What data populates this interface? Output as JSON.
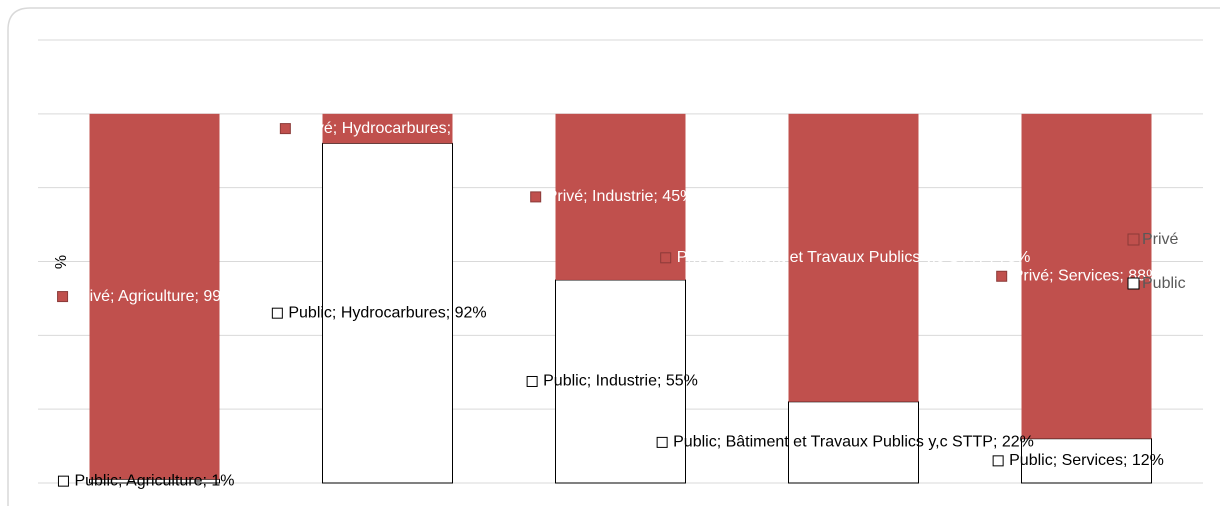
{
  "chart_data": {
    "type": "stacked_bar",
    "y_label": "%",
    "categories": [
      "Agriculture",
      "Hydrocarbures",
      "Industrie",
      "Bâtiment et Travaux Publics y,c STTP",
      "Services"
    ],
    "series": [
      {
        "name": "Public",
        "color": "#ffffff",
        "values": [
          1,
          92,
          55,
          22,
          12
        ],
        "value_labels": [
          "Public; Agriculture; 1%",
          "Public; Hydrocarbures; 92%",
          "Public; Industrie; 55%",
          "Public; Bâtiment et Travaux Publics y,c STTP; 22%",
          "Public; Services; 12%"
        ]
      },
      {
        "name": "Privé",
        "color": "#c0504d",
        "values": [
          99,
          8,
          45,
          78,
          88
        ],
        "value_labels": [
          "Privé; Agriculture; 99%",
          "Privé; Hydrocarbures; 8%",
          "Privé; Industrie; 45%",
          "Privé; Bâtiment et Travaux Publics y,c STTP; 78%",
          "Privé; Services; 88%"
        ]
      }
    ],
    "ylim": [
      0,
      120
    ],
    "yticks": [
      0,
      20,
      40,
      60,
      80,
      100,
      120
    ],
    "grid": true,
    "legend": "right"
  }
}
